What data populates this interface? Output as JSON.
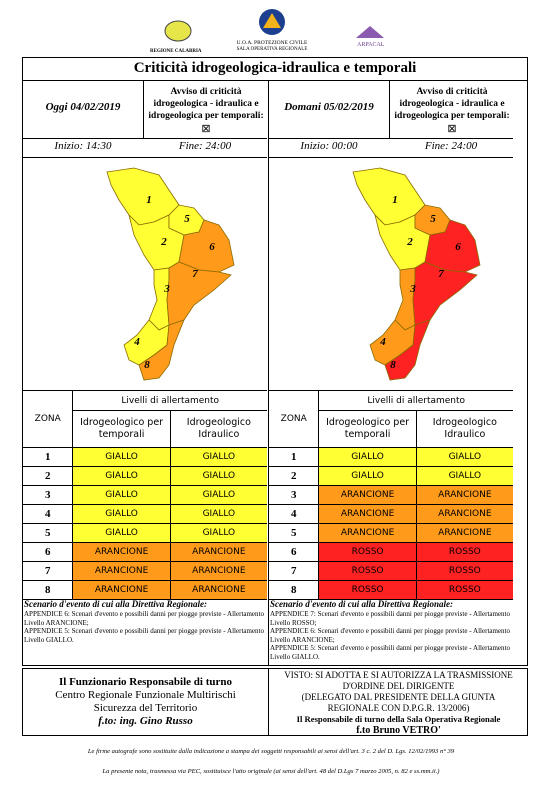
{
  "header": {
    "logos": [
      "REGIONE CALABRIA",
      "U.O.A. PROTEZIONE CIVILE",
      "SALA OPERATIVA REGIONALE",
      "ARPACAL"
    ],
    "title": "Criticità idrogeologica-idraulica e temporali"
  },
  "panels": [
    {
      "date": "Oggi 04/02/2019",
      "notice": "Avviso di criticità idrogeologica - idraulica e idrogeologica per temporali:",
      "checkbox": "⊠",
      "start": "Inizio: 14:30",
      "end": "Fine: 24:00",
      "map_labels": [
        "1",
        "2",
        "3",
        "4",
        "5",
        "6",
        "7",
        "8"
      ],
      "table": {
        "group_header": "Livelli di allertamento",
        "zone_header": "ZONA",
        "columns": [
          "Idrogeologico per temporali",
          "Idrogeologico Idraulico"
        ],
        "rows": [
          {
            "zone": "1",
            "cells": [
              {
                "text": "GIALLO",
                "color": "#ffff33"
              },
              {
                "text": "GIALLO",
                "color": "#ffff33"
              }
            ]
          },
          {
            "zone": "2",
            "cells": [
              {
                "text": "GIALLO",
                "color": "#ffff33"
              },
              {
                "text": "GIALLO",
                "color": "#ffff33"
              }
            ]
          },
          {
            "zone": "3",
            "cells": [
              {
                "text": "GIALLO",
                "color": "#ffff33"
              },
              {
                "text": "GIALLO",
                "color": "#ffff33"
              }
            ]
          },
          {
            "zone": "4",
            "cells": [
              {
                "text": "GIALLO",
                "color": "#ffff33"
              },
              {
                "text": "GIALLO",
                "color": "#ffff33"
              }
            ]
          },
          {
            "zone": "5",
            "cells": [
              {
                "text": "GIALLO",
                "color": "#ffff33"
              },
              {
                "text": "GIALLO",
                "color": "#ffff33"
              }
            ]
          },
          {
            "zone": "6",
            "cells": [
              {
                "text": "ARANCIONE",
                "color": "#ff9a1a"
              },
              {
                "text": "ARANCIONE",
                "color": "#ff9a1a"
              }
            ]
          },
          {
            "zone": "7",
            "cells": [
              {
                "text": "ARANCIONE",
                "color": "#ff9a1a"
              },
              {
                "text": "ARANCIONE",
                "color": "#ff9a1a"
              }
            ]
          },
          {
            "zone": "8",
            "cells": [
              {
                "text": "ARANCIONE",
                "color": "#ff9a1a"
              },
              {
                "text": "ARANCIONE",
                "color": "#ff9a1a"
              }
            ]
          }
        ]
      },
      "scenario": {
        "title": "Scenario d'evento di cui alla Direttiva Regionale:",
        "lines": [
          "APPENDICE 6: Scenari d'evento e possibili danni per piogge previste - Allertamento Livello ARANCIONE;",
          "APPENDICE 5: Scenari d'evento e possibili danni per piogge previste - Allertamento Livello GIALLO."
        ]
      }
    },
    {
      "date": "Domani 05/02/2019",
      "notice": "Avviso di criticità idrogeologica - idraulica e idrogeologica per temporali:",
      "checkbox": "⊠",
      "start": "Inizio: 00:00",
      "end": "Fine: 24:00",
      "map_labels": [
        "1",
        "2",
        "3",
        "4",
        "5",
        "6",
        "7",
        "8"
      ],
      "table": {
        "group_header": "Livelli di allertamento",
        "zone_header": "ZONA",
        "columns": [
          "Idrogeologico per temporali",
          "Idrogeologico Idraulico"
        ],
        "rows": [
          {
            "zone": "1",
            "cells": [
              {
                "text": "GIALLO",
                "color": "#ffff33"
              },
              {
                "text": "GIALLO",
                "color": "#ffff33"
              }
            ]
          },
          {
            "zone": "2",
            "cells": [
              {
                "text": "GIALLO",
                "color": "#ffff33"
              },
              {
                "text": "GIALLO",
                "color": "#ffff33"
              }
            ]
          },
          {
            "zone": "3",
            "cells": [
              {
                "text": "ARANCIONE",
                "color": "#ff9a1a"
              },
              {
                "text": "ARANCIONE",
                "color": "#ff9a1a"
              }
            ]
          },
          {
            "zone": "4",
            "cells": [
              {
                "text": "ARANCIONE",
                "color": "#ff9a1a"
              },
              {
                "text": "ARANCIONE",
                "color": "#ff9a1a"
              }
            ]
          },
          {
            "zone": "5",
            "cells": [
              {
                "text": "ARANCIONE",
                "color": "#ff9a1a"
              },
              {
                "text": "ARANCIONE",
                "color": "#ff9a1a"
              }
            ]
          },
          {
            "zone": "6",
            "cells": [
              {
                "text": "ROSSO",
                "color": "#ff2222"
              },
              {
                "text": "ROSSO",
                "color": "#ff2222"
              }
            ]
          },
          {
            "zone": "7",
            "cells": [
              {
                "text": "ROSSO",
                "color": "#ff2222"
              },
              {
                "text": "ROSSO",
                "color": "#ff2222"
              }
            ]
          },
          {
            "zone": "8",
            "cells": [
              {
                "text": "ROSSO",
                "color": "#ff2222"
              },
              {
                "text": "ROSSO",
                "color": "#ff2222"
              }
            ]
          }
        ]
      },
      "scenario": {
        "title": "Scenario d'evento di cui alla Direttiva Regionale:",
        "lines": [
          "APPENDICE 7: Scenari d'evento e possibili danni per piogge previste - Allertamento Livello ROSSO;",
          "APPENDICE 6: Scenari d'evento e possibili danni per piogge previste - Allertamento Livello ARANCIONE;",
          "APPENDICE 5: Scenari d'evento e possibili danni per piogge previste - Allertamento Livello GIALLO."
        ]
      }
    }
  ],
  "footer": {
    "left": [
      "Il Funzionario Responsabile di turno",
      "Centro Regionale Funzionale Multirischi",
      "Sicurezza del Territorio",
      "f.to: ing. Gino Russo"
    ],
    "right": [
      "VISTO: SI ADOTTA E SI AUTORIZZA LA TRASMISSIONE",
      "D'ORDINE DEL DIRIGENTE",
      "(DELEGATO DAL PRESIDENTE DELLA GIUNTA",
      "REGIONALE CON D.P.G.R. 13/2006)",
      "Il Responsabile di turno della Sala Operativa Regionale",
      "f.to Bruno VETRO'"
    ],
    "notes": [
      "Le firme autografe sono sostituite dalla indicazione a stampa dei soggetti responsabili ai sensi dell'art. 3 c. 2 del D. Lgs. 12/02/1993 n° 39",
      "La presente nota, trasmessa via PEC, sostituisce l'atto originale (ai sensi dell'art. 48 del D.Lgs 7 marzo 2005, n. 82 e ss.mm.ii.)"
    ]
  }
}
